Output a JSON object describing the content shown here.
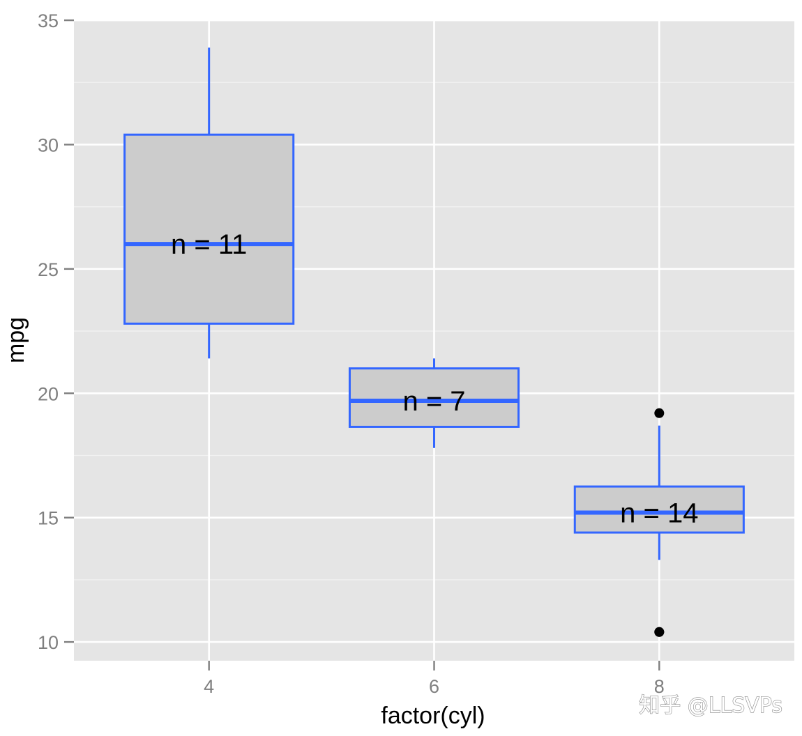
{
  "chart_data": {
    "type": "boxplot",
    "title": "",
    "xlabel": "factor(cyl)",
    "ylabel": "mpg",
    "categories": [
      "4",
      "6",
      "8"
    ],
    "ylim": [
      9.245,
      35.03
    ],
    "yticks": [
      10,
      15,
      20,
      25,
      30,
      35
    ],
    "grid": true,
    "boxes": [
      {
        "category": "4",
        "lower_whisker": 21.4,
        "q1": 22.8,
        "median": 26.0,
        "q3": 30.4,
        "upper_whisker": 33.9,
        "outliers": [],
        "label": "n = 11"
      },
      {
        "category": "6",
        "lower_whisker": 17.8,
        "q1": 18.65,
        "median": 19.7,
        "q3": 21.0,
        "upper_whisker": 21.4,
        "outliers": [],
        "label": "n = 7"
      },
      {
        "category": "8",
        "lower_whisker": 13.3,
        "q1": 14.4,
        "median": 15.2,
        "q3": 16.25,
        "upper_whisker": 18.7,
        "outliers": [
          10.4,
          10.4,
          19.2
        ],
        "label": "n = 14"
      }
    ],
    "colors": {
      "box_outline": "#3366ff",
      "box_fill": "#cccccc",
      "panel": "#e5e5e5",
      "grid": "#ffffff",
      "outlier": "#000000"
    }
  },
  "watermark": "知乎 @LLSVPs"
}
